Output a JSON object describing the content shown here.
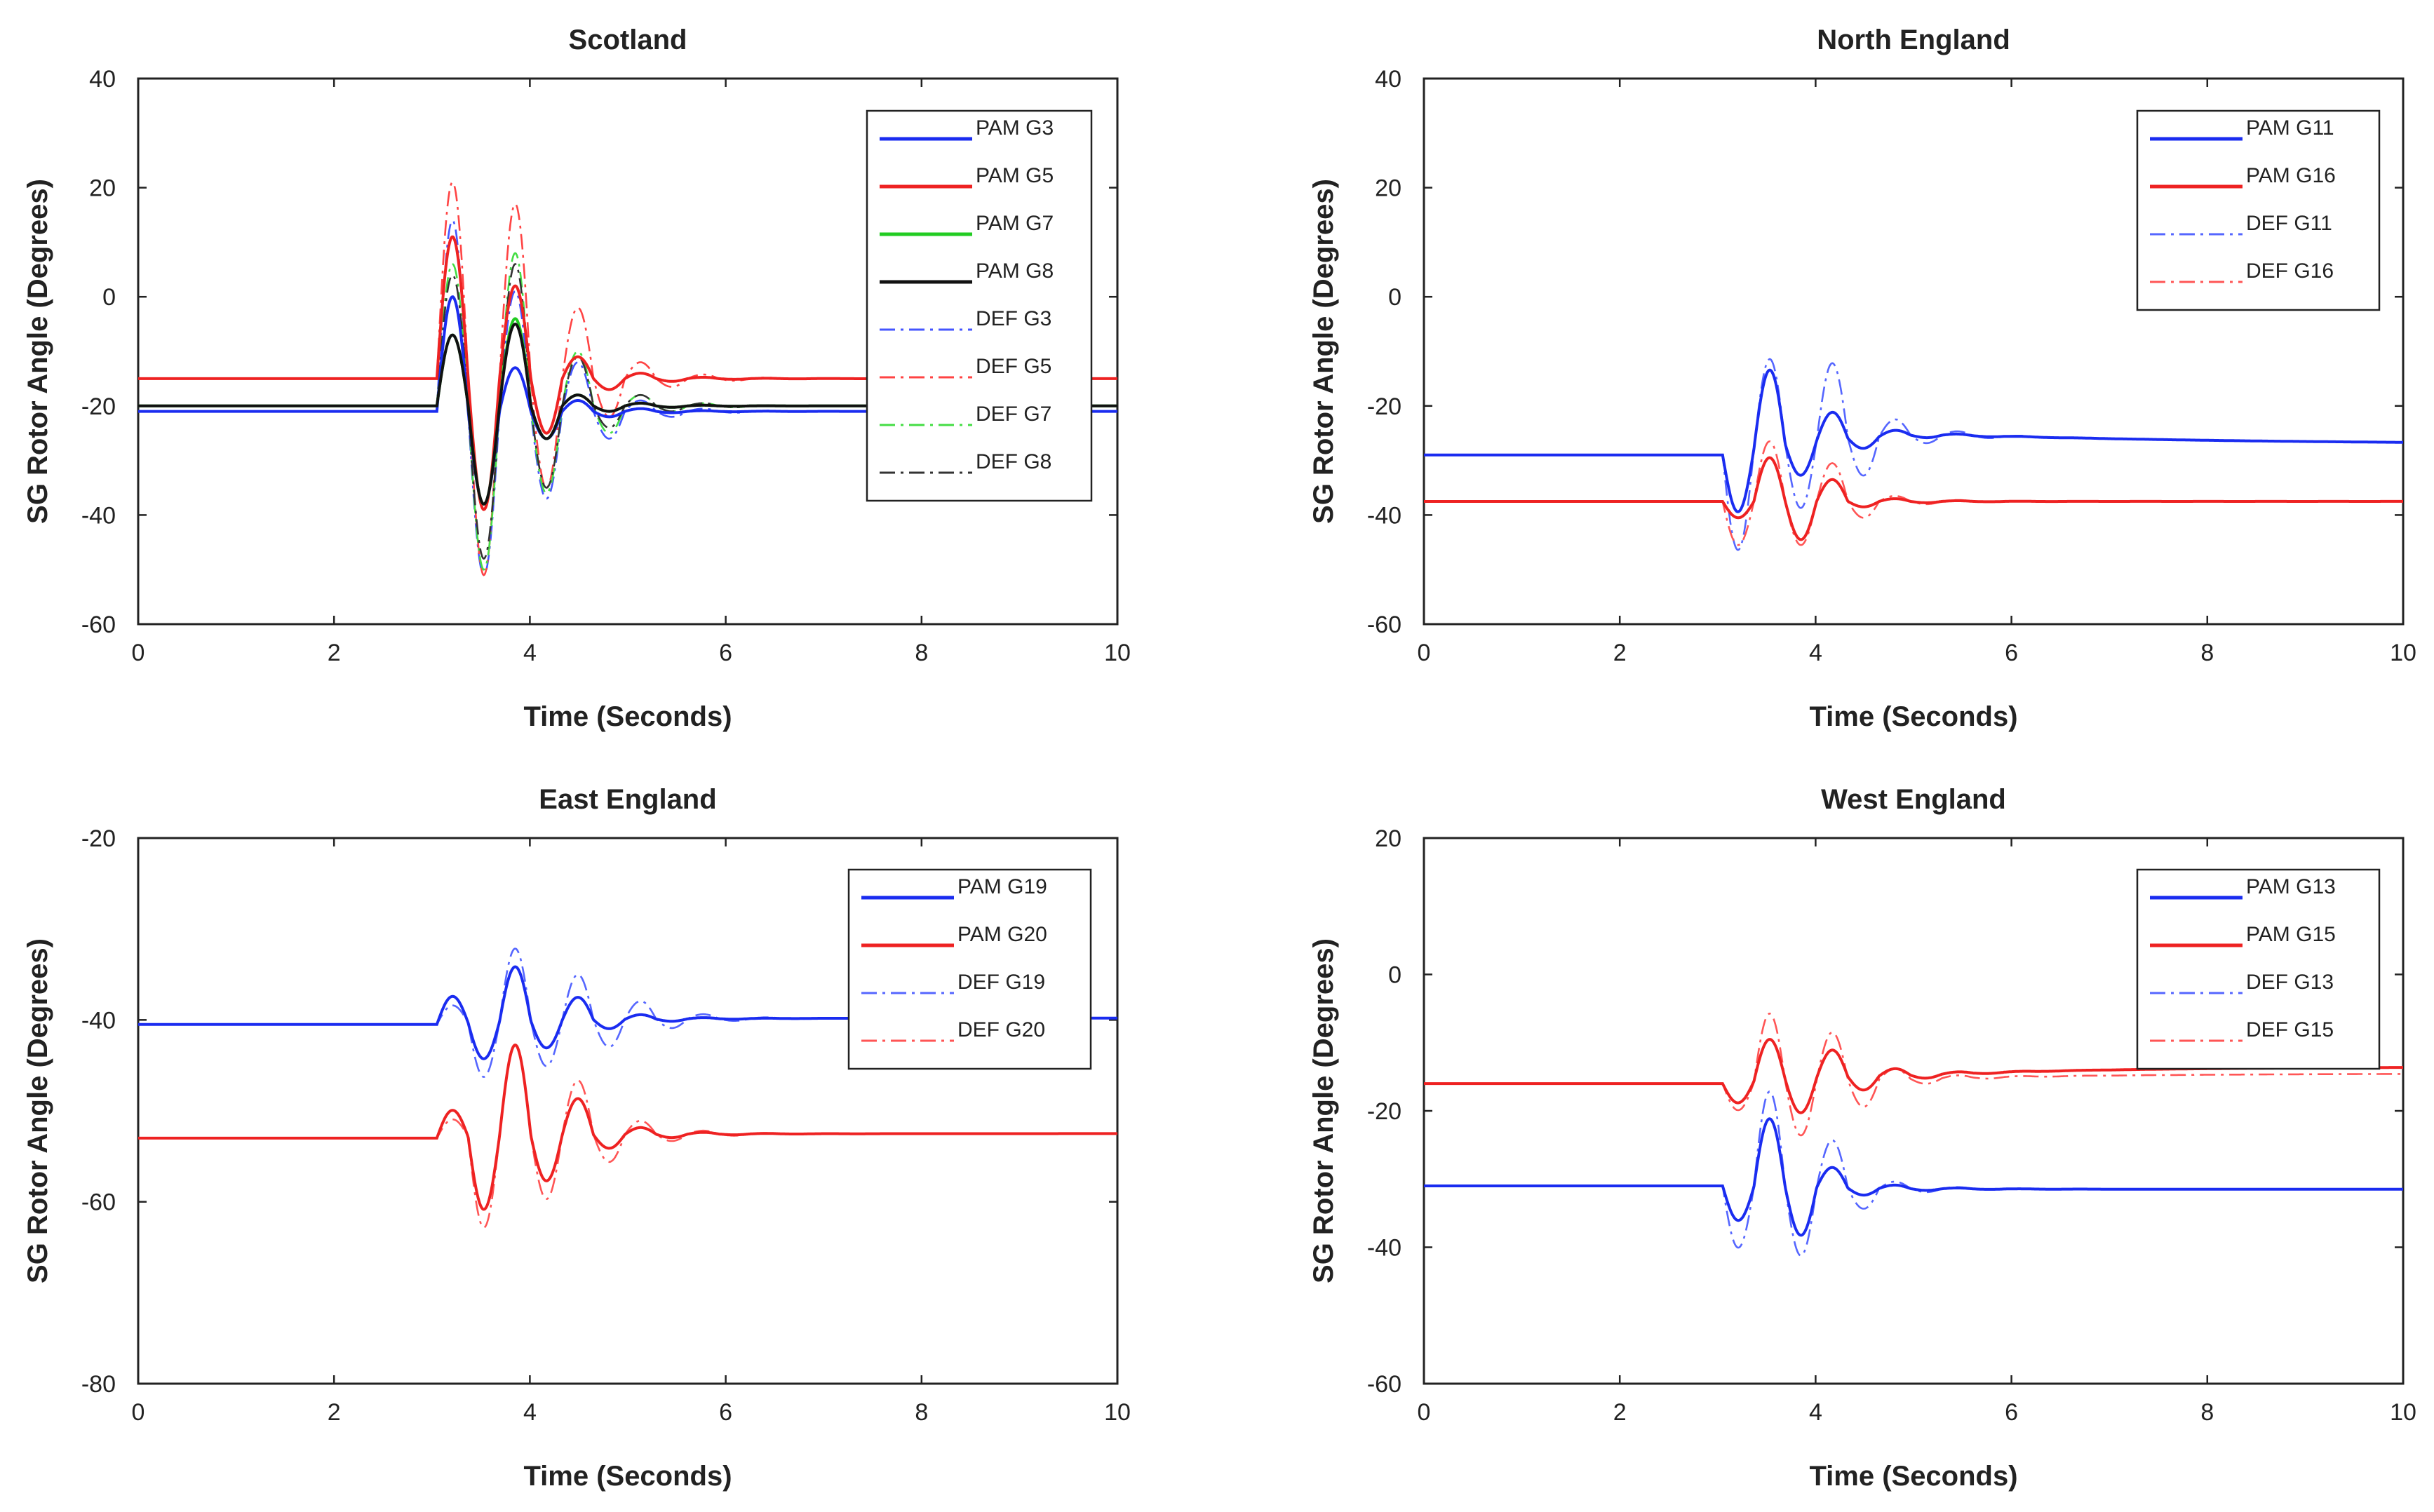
{
  "chart_data": [
    {
      "type": "line",
      "title": "Scotland",
      "xlabel": "Time (Seconds)",
      "ylabel": "SG Rotor Angle (Degrees)",
      "xlim": [
        0,
        10
      ],
      "ylim": [
        -60,
        40
      ],
      "xticks": [
        0,
        2,
        4,
        6,
        8,
        10
      ],
      "yticks": [
        -60,
        -40,
        -20,
        0,
        20,
        40
      ],
      "legend_position": "top-right",
      "series": [
        {
          "name": "PAM G3",
          "color": "#1a2cf0",
          "style": "solid",
          "base": -21,
          "final": -21,
          "amps": [
            21,
            -17,
            8,
            -5,
            2
          ],
          "t0": 3.05
        },
        {
          "name": "PAM G5",
          "color": "#ee2222",
          "style": "solid",
          "base": -15,
          "final": -15,
          "amps": [
            26,
            -24,
            17,
            -10,
            4
          ],
          "t0": 3.05
        },
        {
          "name": "PAM G7",
          "color": "#22cc22",
          "style": "solid",
          "base": -20,
          "final": -20,
          "amps": [
            13,
            -18,
            16,
            -6,
            2
          ],
          "t0": 3.05
        },
        {
          "name": "PAM G8",
          "color": "#111111",
          "style": "solid",
          "base": -20,
          "final": -20,
          "amps": [
            13,
            -18,
            15,
            -6,
            2
          ],
          "t0": 3.05
        },
        {
          "name": "DEF G3",
          "color": "#4455ff",
          "style": "dashdot",
          "base": -21,
          "final": -21,
          "amps": [
            35,
            -30,
            22,
            -16,
            9,
            -5,
            2
          ],
          "t0": 3.05
        },
        {
          "name": "DEF G5",
          "color": "#ff4444",
          "style": "dashdot",
          "base": -15,
          "final": -15,
          "amps": [
            36,
            -36,
            32,
            -20,
            13,
            -7,
            3
          ],
          "t0": 3.05
        },
        {
          "name": "DEF G7",
          "color": "#44dd44",
          "style": "dashdot",
          "base": -20,
          "final": -20,
          "amps": [
            26,
            -30,
            28,
            -16,
            10,
            -5,
            2
          ],
          "t0": 3.05
        },
        {
          "name": "DEF G8",
          "color": "#333333",
          "style": "dashdot",
          "base": -20,
          "final": -20,
          "amps": [
            24,
            -28,
            26,
            -15,
            9,
            -4,
            2
          ],
          "t0": 3.05
        }
      ]
    },
    {
      "type": "line",
      "title": "North England",
      "xlabel": "Time (Seconds)",
      "ylabel": "SG Rotor Angle (Degrees)",
      "xlim": [
        0,
        10
      ],
      "ylim": [
        -60,
        40
      ],
      "xticks": [
        0,
        2,
        4,
        6,
        8,
        10
      ],
      "yticks": [
        -60,
        -40,
        -20,
        0,
        20,
        40
      ],
      "legend_position": "top-right",
      "series": [
        {
          "name": "PAM G11",
          "color": "#1a2cf0",
          "style": "solid",
          "base": -29,
          "final": -27,
          "amps": [
            -11,
            14,
            -6,
            5,
            -2
          ],
          "t0": 3.05,
          "drift": 8
        },
        {
          "name": "PAM G16",
          "color": "#ee2222",
          "style": "solid",
          "base": -37.5,
          "final": -37.5,
          "amps": [
            -3,
            8,
            -7,
            4,
            -1
          ],
          "t0": 3.05
        },
        {
          "name": "DEF G11",
          "color": "#5566ff",
          "style": "dashdot",
          "base": -29,
          "final": -27,
          "amps": [
            -18,
            16,
            -12,
            14,
            -7,
            3
          ],
          "t0": 3.05,
          "drift": 8
        },
        {
          "name": "DEF G16",
          "color": "#ff5555",
          "style": "dashdot",
          "base": -37.5,
          "final": -37.5,
          "amps": [
            -8,
            11,
            -8,
            7,
            -3,
            1
          ],
          "t0": 3.05
        }
      ]
    },
    {
      "type": "line",
      "title": "East England",
      "xlabel": "Time (Seconds)",
      "ylabel": "SG Rotor Angle (Degrees)",
      "xlim": [
        0,
        10
      ],
      "ylim": [
        -80,
        -20
      ],
      "xticks": [
        0,
        2,
        4,
        6,
        8,
        10
      ],
      "yticks": [
        -80,
        -60,
        -40,
        -20
      ],
      "legend_position": "top-right",
      "series": [
        {
          "name": "PAM G19",
          "color": "#1a2cf0",
          "style": "solid",
          "base": -40.5,
          "final": -39.8,
          "amps": [
            3,
            -4,
            6,
            -3,
            2.5,
            -1
          ],
          "t0": 3.05
        },
        {
          "name": "PAM G20",
          "color": "#ee2222",
          "style": "solid",
          "base": -53,
          "final": -52.5,
          "amps": [
            3,
            -8,
            10,
            -5,
            4,
            -1.5
          ],
          "t0": 3.05
        },
        {
          "name": "DEF G19",
          "color": "#5566ff",
          "style": "dashdot",
          "base": -40.5,
          "final": -39.8,
          "amps": [
            2,
            -6,
            8,
            -5,
            5,
            -3,
            2
          ],
          "t0": 3.05
        },
        {
          "name": "DEF G20",
          "color": "#ff5555",
          "style": "dashdot",
          "base": -53,
          "final": -52.5,
          "amps": [
            2,
            -10,
            10,
            -7,
            6,
            -3,
            1.5
          ],
          "t0": 3.05
        }
      ]
    },
    {
      "type": "line",
      "title": "West England",
      "xlabel": "Time (Seconds)",
      "ylabel": "SG Rotor Angle (Degrees)",
      "xlim": [
        0,
        10
      ],
      "ylim": [
        -60,
        20
      ],
      "xticks": [
        0,
        2,
        4,
        6,
        8,
        10
      ],
      "yticks": [
        -60,
        -40,
        -20,
        0,
        20
      ],
      "legend_position": "top-right",
      "series": [
        {
          "name": "PAM G13",
          "color": "#1a2cf0",
          "style": "solid",
          "base": -31,
          "final": -31.5,
          "amps": [
            -5,
            10,
            -7,
            3,
            -1
          ],
          "t0": 3.05
        },
        {
          "name": "PAM G15",
          "color": "#ee2222",
          "style": "solid",
          "base": -16,
          "final": -13.5,
          "amps": [
            -3,
            6,
            -5,
            4,
            -2
          ],
          "t0": 3.05,
          "drift": -3
        },
        {
          "name": "DEF G13",
          "color": "#5566ff",
          "style": "dashdot",
          "base": -31,
          "final": -31.5,
          "amps": [
            -9,
            14,
            -10,
            7,
            -3,
            1
          ],
          "t0": 3.05
        },
        {
          "name": "DEF G15",
          "color": "#ff5555",
          "style": "dashdot",
          "base": -16,
          "final": -14.5,
          "amps": [
            -4,
            10,
            -8,
            7,
            -4,
            1.5
          ],
          "t0": 3.05,
          "drift": -2
        }
      ]
    }
  ]
}
